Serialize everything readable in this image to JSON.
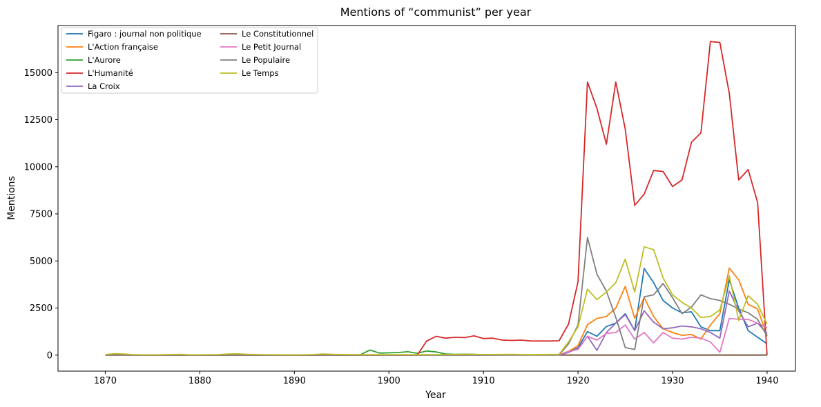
{
  "chart_data": {
    "type": "line",
    "title": "Mentions of “communist” per year",
    "xlabel": "Year",
    "ylabel": "Mentions",
    "xlim": [
      1865,
      1943
    ],
    "ylim": [
      -850,
      17500
    ],
    "xticks": [
      1870,
      1880,
      1890,
      1900,
      1910,
      1920,
      1930,
      1940
    ],
    "yticks": [
      0,
      2500,
      5000,
      7500,
      10000,
      12500,
      15000
    ],
    "grid": false,
    "legend_position": "top-left",
    "series": [
      {
        "name": "Figaro : journal non politique",
        "color": "#1f77b4",
        "points": [
          [
            1870,
            10
          ],
          [
            1875,
            5
          ],
          [
            1880,
            5
          ],
          [
            1890,
            5
          ],
          [
            1900,
            5
          ],
          [
            1910,
            5
          ],
          [
            1918,
            10
          ],
          [
            1919,
            150
          ],
          [
            1920,
            400
          ],
          [
            1921,
            1250
          ],
          [
            1922,
            1000
          ],
          [
            1923,
            1520
          ],
          [
            1924,
            1700
          ],
          [
            1925,
            2200
          ],
          [
            1926,
            1300
          ],
          [
            1927,
            4600
          ],
          [
            1928,
            3850
          ],
          [
            1929,
            2900
          ],
          [
            1930,
            2500
          ],
          [
            1931,
            2250
          ],
          [
            1932,
            2300
          ],
          [
            1933,
            1500
          ],
          [
            1934,
            1300
          ],
          [
            1935,
            1300
          ],
          [
            1936,
            4000
          ],
          [
            1937,
            2500
          ],
          [
            1938,
            1300
          ],
          [
            1939,
            950
          ],
          [
            1940,
            600
          ]
        ]
      },
      {
        "name": "L'Action française",
        "color": "#ff7f0e",
        "points": [
          [
            1870,
            10
          ],
          [
            1880,
            5
          ],
          [
            1890,
            5
          ],
          [
            1900,
            5
          ],
          [
            1910,
            10
          ],
          [
            1918,
            20
          ],
          [
            1919,
            200
          ],
          [
            1920,
            500
          ],
          [
            1921,
            1620
          ],
          [
            1922,
            1950
          ],
          [
            1923,
            2050
          ],
          [
            1924,
            2500
          ],
          [
            1925,
            3650
          ],
          [
            1926,
            1950
          ],
          [
            1927,
            3050
          ],
          [
            1928,
            2050
          ],
          [
            1929,
            1400
          ],
          [
            1930,
            1200
          ],
          [
            1931,
            1050
          ],
          [
            1932,
            1100
          ],
          [
            1933,
            850
          ],
          [
            1934,
            1600
          ],
          [
            1935,
            2200
          ],
          [
            1936,
            4620
          ],
          [
            1937,
            4000
          ],
          [
            1938,
            2700
          ],
          [
            1939,
            2450
          ],
          [
            1940,
            1050
          ]
        ]
      },
      {
        "name": "L'Aurore",
        "color": "#2ca02c",
        "points": [
          [
            1870,
            20
          ],
          [
            1871,
            40
          ],
          [
            1872,
            20
          ],
          [
            1875,
            10
          ],
          [
            1880,
            10
          ],
          [
            1885,
            10
          ],
          [
            1890,
            10
          ],
          [
            1895,
            10
          ],
          [
            1897,
            30
          ],
          [
            1898,
            270
          ],
          [
            1899,
            110
          ],
          [
            1900,
            120
          ],
          [
            1901,
            140
          ],
          [
            1902,
            180
          ],
          [
            1903,
            100
          ],
          [
            1904,
            220
          ],
          [
            1905,
            170
          ],
          [
            1906,
            60
          ],
          [
            1907,
            40
          ],
          [
            1908,
            50
          ],
          [
            1909,
            40
          ],
          [
            1910,
            20
          ],
          [
            1912,
            10
          ],
          [
            1915,
            5
          ],
          [
            1918,
            5
          ],
          [
            1920,
            5
          ],
          [
            1940,
            5
          ]
        ]
      },
      {
        "name": "L'Humanité",
        "color": "#d62728",
        "points": [
          [
            1870,
            0
          ],
          [
            1903,
            0
          ],
          [
            1904,
            750
          ],
          [
            1905,
            1000
          ],
          [
            1906,
            900
          ],
          [
            1907,
            950
          ],
          [
            1908,
            930
          ],
          [
            1909,
            1020
          ],
          [
            1910,
            880
          ],
          [
            1911,
            900
          ],
          [
            1912,
            800
          ],
          [
            1913,
            780
          ],
          [
            1914,
            800
          ],
          [
            1915,
            750
          ],
          [
            1916,
            750
          ],
          [
            1917,
            750
          ],
          [
            1918,
            760
          ],
          [
            1919,
            1650
          ],
          [
            1920,
            3900
          ],
          [
            1921,
            14500
          ],
          [
            1922,
            13100
          ],
          [
            1923,
            11200
          ],
          [
            1924,
            14500
          ],
          [
            1925,
            12000
          ],
          [
            1926,
            7950
          ],
          [
            1927,
            8550
          ],
          [
            1928,
            9800
          ],
          [
            1929,
            9750
          ],
          [
            1930,
            8950
          ],
          [
            1931,
            9300
          ],
          [
            1932,
            11300
          ],
          [
            1933,
            11800
          ],
          [
            1934,
            16650
          ],
          [
            1935,
            16600
          ],
          [
            1936,
            13900
          ],
          [
            1937,
            9300
          ],
          [
            1938,
            9850
          ],
          [
            1939,
            8100
          ],
          [
            1940,
            0
          ]
        ]
      },
      {
        "name": "La Croix",
        "color": "#9467bd",
        "points": [
          [
            1870,
            5
          ],
          [
            1880,
            5
          ],
          [
            1890,
            5
          ],
          [
            1900,
            5
          ],
          [
            1910,
            5
          ],
          [
            1918,
            10
          ],
          [
            1919,
            150
          ],
          [
            1920,
            350
          ],
          [
            1921,
            1000
          ],
          [
            1922,
            250
          ],
          [
            1923,
            1200
          ],
          [
            1924,
            1700
          ],
          [
            1925,
            2150
          ],
          [
            1926,
            1300
          ],
          [
            1927,
            2350
          ],
          [
            1928,
            1750
          ],
          [
            1929,
            1400
          ],
          [
            1930,
            1450
          ],
          [
            1931,
            1550
          ],
          [
            1932,
            1500
          ],
          [
            1933,
            1400
          ],
          [
            1934,
            1200
          ],
          [
            1935,
            900
          ],
          [
            1936,
            3400
          ],
          [
            1937,
            2350
          ],
          [
            1938,
            1500
          ],
          [
            1939,
            1700
          ],
          [
            1940,
            1150
          ]
        ]
      },
      {
        "name": "Le Constitutionnel",
        "color": "#8c564b",
        "points": [
          [
            1870,
            10
          ],
          [
            1871,
            40
          ],
          [
            1872,
            20
          ],
          [
            1875,
            5
          ],
          [
            1880,
            5
          ],
          [
            1890,
            5
          ],
          [
            1900,
            5
          ],
          [
            1910,
            5
          ],
          [
            1920,
            5
          ],
          [
            1930,
            5
          ],
          [
            1940,
            5
          ]
        ]
      },
      {
        "name": "Le Petit Journal",
        "color": "#e377c2",
        "points": [
          [
            1870,
            5
          ],
          [
            1880,
            5
          ],
          [
            1890,
            5
          ],
          [
            1900,
            5
          ],
          [
            1910,
            5
          ],
          [
            1918,
            10
          ],
          [
            1919,
            200
          ],
          [
            1920,
            300
          ],
          [
            1921,
            1000
          ],
          [
            1922,
            800
          ],
          [
            1923,
            1150
          ],
          [
            1924,
            1200
          ],
          [
            1925,
            1600
          ],
          [
            1926,
            850
          ],
          [
            1927,
            1200
          ],
          [
            1928,
            650
          ],
          [
            1929,
            1200
          ],
          [
            1930,
            900
          ],
          [
            1931,
            850
          ],
          [
            1932,
            950
          ],
          [
            1933,
            900
          ],
          [
            1934,
            700
          ],
          [
            1935,
            150
          ],
          [
            1936,
            1950
          ],
          [
            1937,
            1900
          ],
          [
            1938,
            1900
          ],
          [
            1939,
            1700
          ],
          [
            1940,
            1450
          ]
        ]
      },
      {
        "name": "Le Populaire",
        "color": "#7f7f7f",
        "points": [
          [
            1870,
            5
          ],
          [
            1910,
            5
          ],
          [
            1918,
            10
          ],
          [
            1919,
            600
          ],
          [
            1920,
            1600
          ],
          [
            1921,
            6250
          ],
          [
            1922,
            4300
          ],
          [
            1923,
            3400
          ],
          [
            1924,
            2000
          ],
          [
            1925,
            400
          ],
          [
            1926,
            300
          ],
          [
            1927,
            3100
          ],
          [
            1928,
            3200
          ],
          [
            1929,
            3800
          ],
          [
            1930,
            3050
          ],
          [
            1931,
            2200
          ],
          [
            1932,
            2550
          ],
          [
            1933,
            3200
          ],
          [
            1934,
            3000
          ],
          [
            1935,
            2900
          ],
          [
            1936,
            2700
          ],
          [
            1937,
            2450
          ],
          [
            1938,
            2250
          ],
          [
            1939,
            1900
          ],
          [
            1940,
            1000
          ]
        ]
      },
      {
        "name": "Le Temps",
        "color": "#bcbd22",
        "points": [
          [
            1870,
            30
          ],
          [
            1871,
            80
          ],
          [
            1872,
            60
          ],
          [
            1873,
            20
          ],
          [
            1875,
            10
          ],
          [
            1878,
            40
          ],
          [
            1879,
            10
          ],
          [
            1882,
            30
          ],
          [
            1883,
            60
          ],
          [
            1884,
            70
          ],
          [
            1885,
            40
          ],
          [
            1887,
            20
          ],
          [
            1890,
            10
          ],
          [
            1892,
            30
          ],
          [
            1893,
            60
          ],
          [
            1894,
            40
          ],
          [
            1896,
            20
          ],
          [
            1900,
            20
          ],
          [
            1905,
            20
          ],
          [
            1908,
            40
          ],
          [
            1910,
            30
          ],
          [
            1913,
            40
          ],
          [
            1915,
            20
          ],
          [
            1918,
            40
          ],
          [
            1919,
            700
          ],
          [
            1920,
            1500
          ],
          [
            1921,
            3500
          ],
          [
            1922,
            2950
          ],
          [
            1923,
            3350
          ],
          [
            1924,
            3850
          ],
          [
            1925,
            5100
          ],
          [
            1926,
            3350
          ],
          [
            1927,
            5750
          ],
          [
            1928,
            5600
          ],
          [
            1929,
            4100
          ],
          [
            1930,
            3200
          ],
          [
            1931,
            2800
          ],
          [
            1932,
            2500
          ],
          [
            1933,
            2000
          ],
          [
            1934,
            2050
          ],
          [
            1935,
            2400
          ],
          [
            1936,
            4200
          ],
          [
            1937,
            1850
          ],
          [
            1938,
            3150
          ],
          [
            1939,
            2700
          ],
          [
            1940,
            1650
          ]
        ]
      }
    ]
  }
}
